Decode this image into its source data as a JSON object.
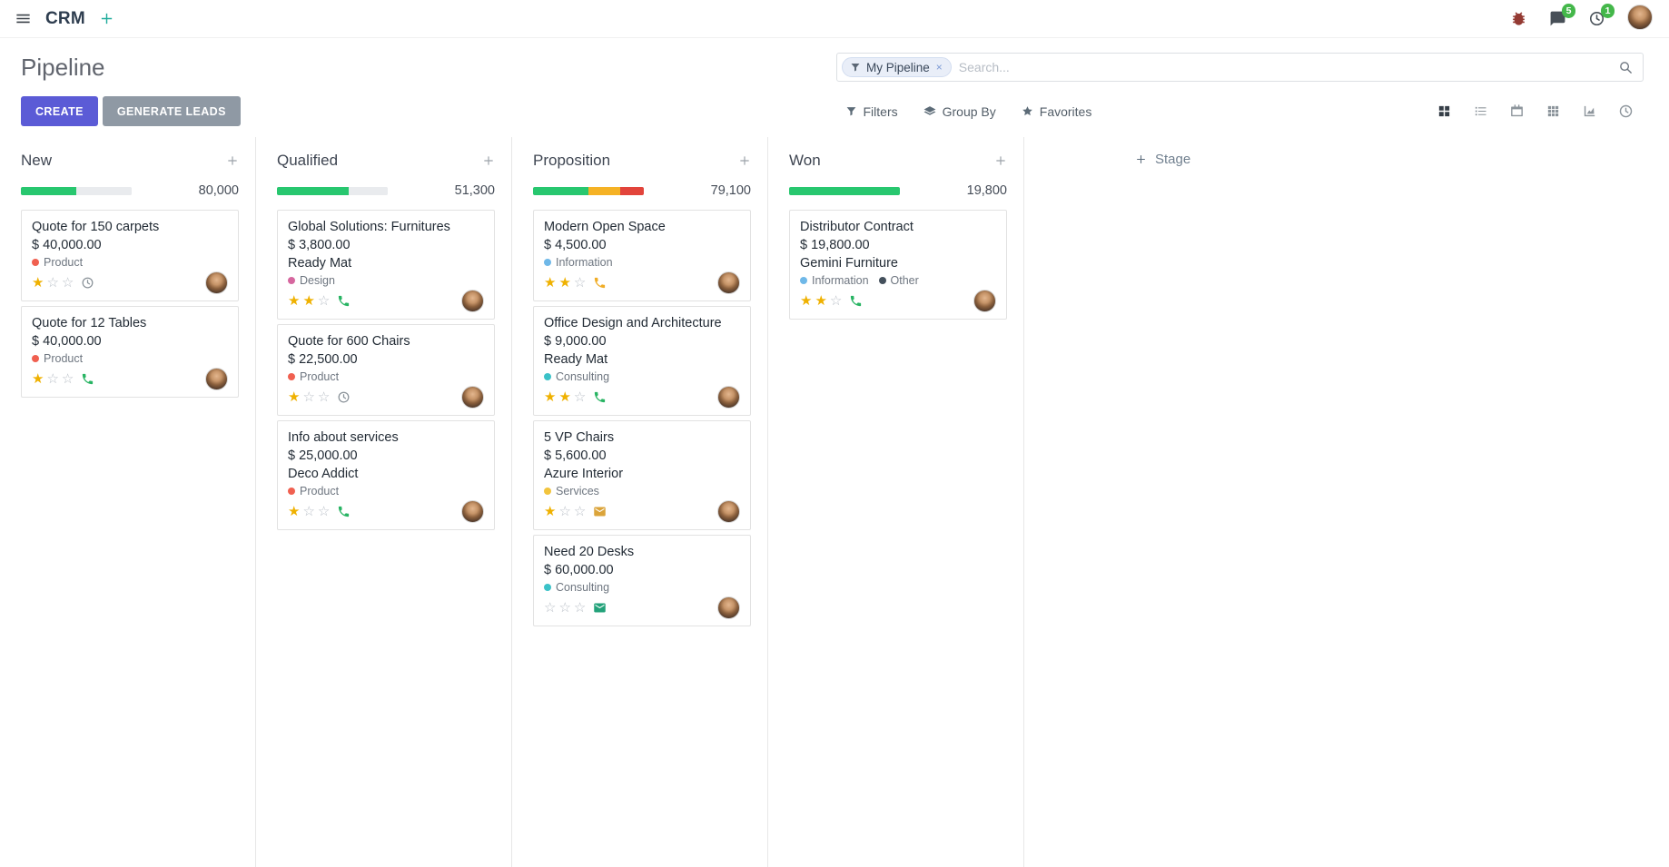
{
  "colors": {
    "primary_button": "#5b5bd6",
    "secondary_button": "#8f99a4",
    "progress_green": "#28c76f",
    "progress_yellow": "#f5b225",
    "progress_red": "#e2443b",
    "progress_track": "#e9ebee",
    "star_filled": "#efb100",
    "notification_badge": "#44b74a"
  },
  "navbar": {
    "app_name": "CRM",
    "messages_badge": "5",
    "activities_badge": "1"
  },
  "control_panel": {
    "title": "Pipeline",
    "create_button": "CREATE",
    "generate_leads_button": "GENERATE LEADS",
    "filters_button": "Filters",
    "group_by_button": "Group By",
    "favorites_button": "Favorites",
    "search": {
      "facet_label": "My Pipeline",
      "facet_remove": "×",
      "placeholder": "Search..."
    },
    "view_switcher": [
      "kanban",
      "list",
      "calendar",
      "pivot",
      "graph",
      "activity"
    ],
    "active_view": "kanban"
  },
  "board": {
    "stage_adder_label": "Stage"
  },
  "columns": [
    {
      "name": "New",
      "counter": "80,000",
      "progress": [
        {
          "color": "#28c76f",
          "pct": 50
        },
        {
          "color": "#e9ebee",
          "pct": 50
        }
      ],
      "cards": [
        {
          "title": "Quote for 150 carpets",
          "amount": "$ 40,000.00",
          "partner": "",
          "tags": [
            {
              "label": "Product",
              "color": "#f06050"
            }
          ],
          "stars": 1,
          "activity": {
            "icon": "clock-icon",
            "color": "#8a9299"
          }
        },
        {
          "title": "Quote for 12 Tables",
          "amount": "$ 40,000.00",
          "partner": "",
          "tags": [
            {
              "label": "Product",
              "color": "#f06050"
            }
          ],
          "stars": 1,
          "activity": {
            "icon": "phone-icon",
            "color": "#28b463"
          }
        }
      ]
    },
    {
      "name": "Qualified",
      "counter": "51,300",
      "progress": [
        {
          "color": "#28c76f",
          "pct": 65
        },
        {
          "color": "#e9ebee",
          "pct": 35
        }
      ],
      "cards": [
        {
          "title": "Global Solutions: Furnitures",
          "amount": "$ 3,800.00",
          "partner": "Ready Mat",
          "tags": [
            {
              "label": "Design",
              "color": "#d6679f"
            }
          ],
          "stars": 2,
          "activity": {
            "icon": "phone-icon",
            "color": "#28b463"
          }
        },
        {
          "title": "Quote for 600 Chairs",
          "amount": "$ 22,500.00",
          "partner": "",
          "tags": [
            {
              "label": "Product",
              "color": "#f06050"
            }
          ],
          "stars": 1,
          "activity": {
            "icon": "clock-icon",
            "color": "#8a9299"
          }
        },
        {
          "title": "Info about services",
          "amount": "$ 25,000.00",
          "partner": "Deco Addict",
          "tags": [
            {
              "label": "Product",
              "color": "#f06050"
            }
          ],
          "stars": 1,
          "activity": {
            "icon": "phone-icon",
            "color": "#28b463"
          }
        }
      ]
    },
    {
      "name": "Proposition",
      "counter": "79,100",
      "progress": [
        {
          "color": "#28c76f",
          "pct": 50
        },
        {
          "color": "#f5b225",
          "pct": 29
        },
        {
          "color": "#e2443b",
          "pct": 21
        }
      ],
      "cards": [
        {
          "title": "Modern Open Space",
          "amount": "$ 4,500.00",
          "partner": "",
          "tags": [
            {
              "label": "Information",
              "color": "#6fb8e8"
            }
          ],
          "stars": 2,
          "activity": {
            "icon": "phone-icon",
            "color": "#f0ad27"
          }
        },
        {
          "title": "Office Design and Architecture",
          "amount": "$ 9,000.00",
          "partner": "Ready Mat",
          "tags": [
            {
              "label": "Consulting",
              "color": "#3bc2c8"
            }
          ],
          "stars": 2,
          "activity": {
            "icon": "phone-icon",
            "color": "#28b463"
          }
        },
        {
          "title": "5 VP Chairs",
          "amount": "$ 5,600.00",
          "partner": "Azure Interior",
          "tags": [
            {
              "label": "Services",
              "color": "#f2c43d"
            }
          ],
          "stars": 1,
          "activity": {
            "icon": "envelope-icon",
            "color": "#dba43a"
          }
        },
        {
          "title": "Need 20 Desks",
          "amount": "$ 60,000.00",
          "partner": "",
          "tags": [
            {
              "label": "Consulting",
              "color": "#3bc2c8"
            }
          ],
          "stars": 0,
          "activity": {
            "icon": "envelope-icon",
            "color": "#23a27a"
          }
        }
      ]
    },
    {
      "name": "Won",
      "counter": "19,800",
      "progress": [
        {
          "color": "#28c76f",
          "pct": 100
        }
      ],
      "cards": [
        {
          "title": "Distributor Contract",
          "amount": "$ 19,800.00",
          "partner": "Gemini Furniture",
          "tags": [
            {
              "label": "Information",
              "color": "#6fb8e8"
            },
            {
              "label": "Other",
              "color": "#44505c"
            }
          ],
          "stars": 2,
          "activity": {
            "icon": "phone-icon",
            "color": "#28b463"
          }
        }
      ]
    }
  ]
}
